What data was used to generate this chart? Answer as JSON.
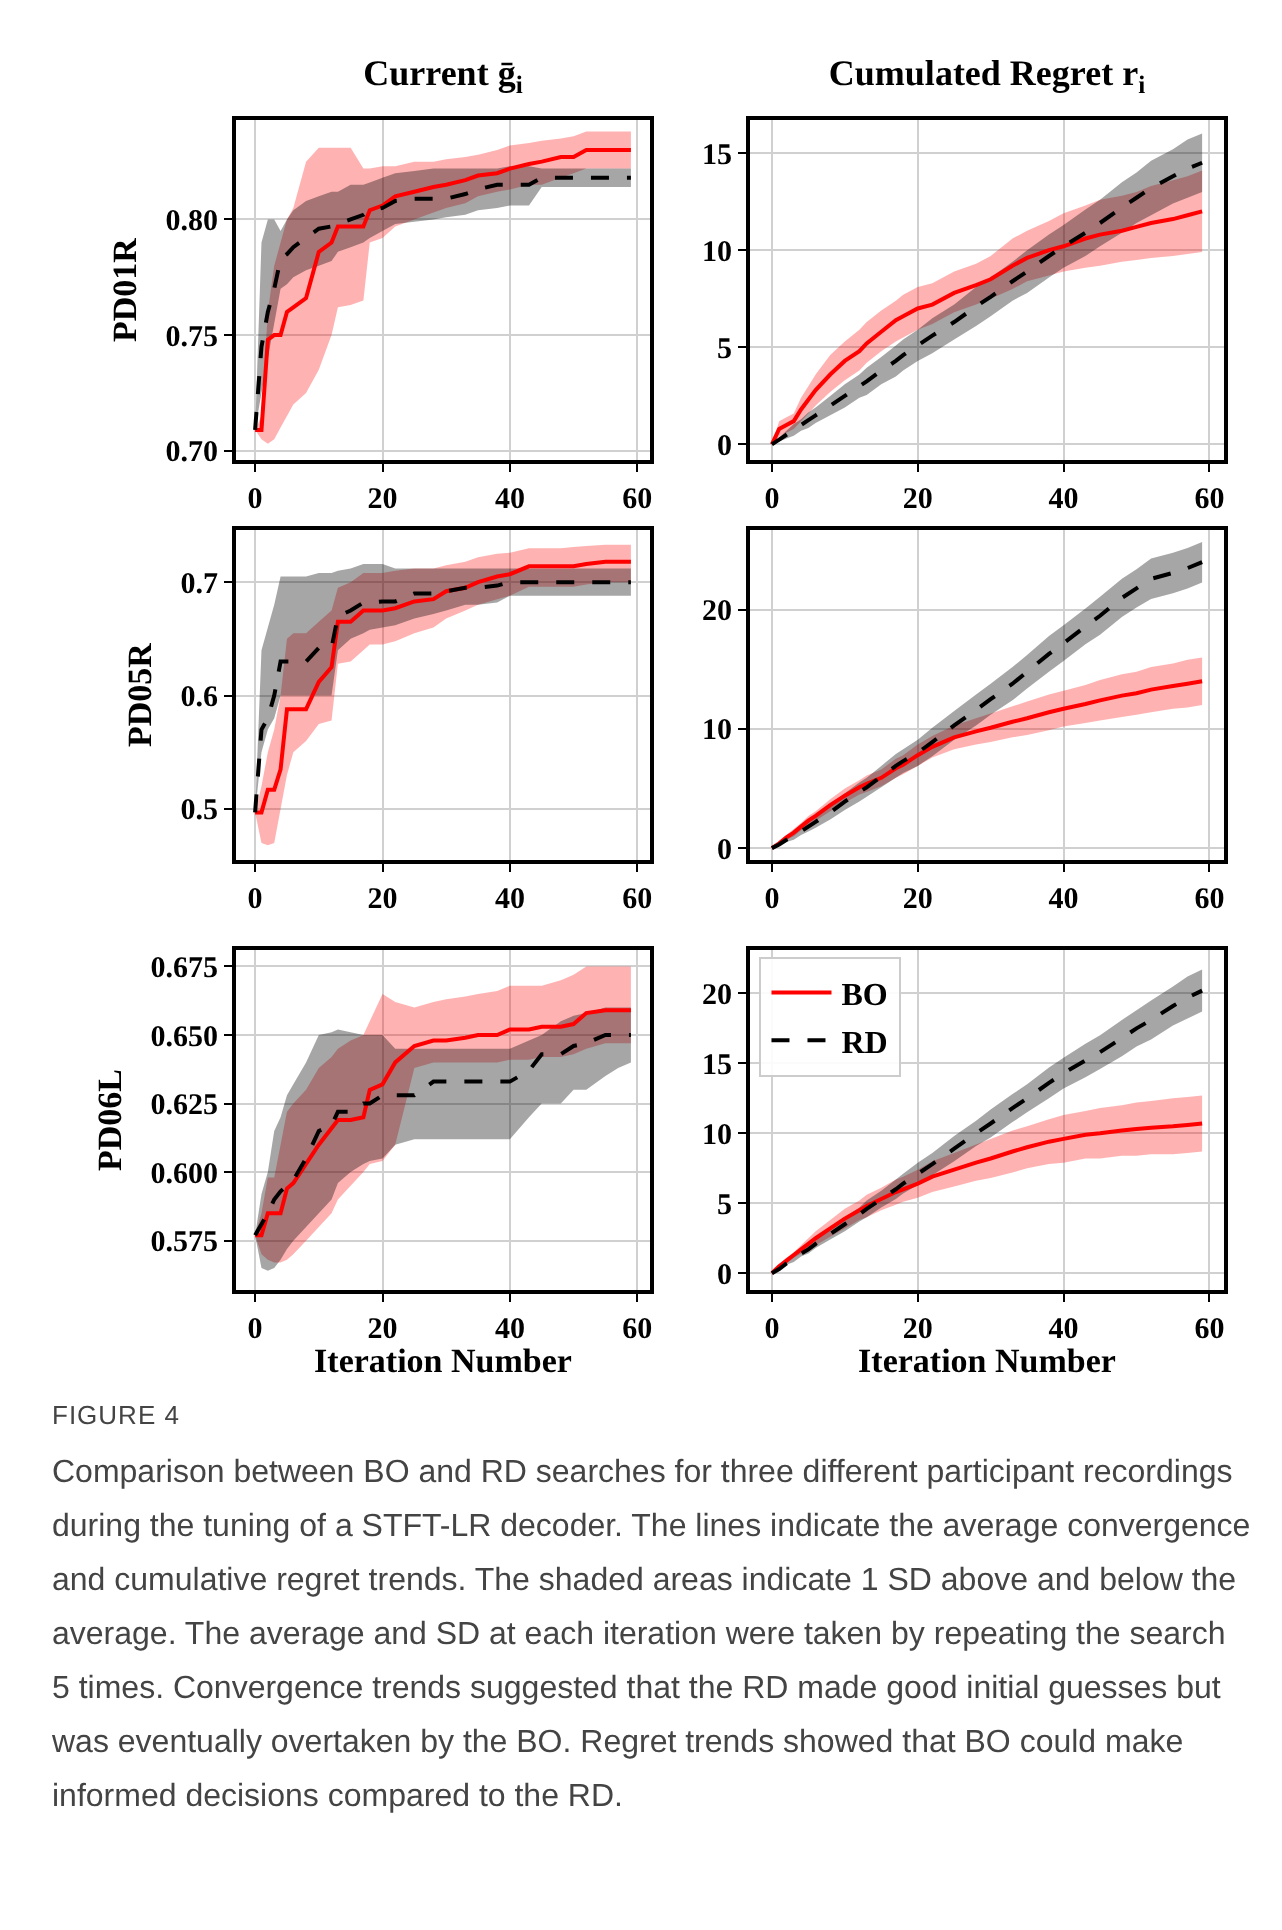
{
  "chart_data": [
    {
      "type": "line",
      "title": "Current ḡ$_{i}$",
      "ylabel": "PD01R",
      "x": [
        0,
        1,
        2,
        3,
        4,
        5,
        6,
        8,
        10,
        12,
        13,
        15,
        17,
        18,
        20,
        22,
        25,
        28,
        30,
        33,
        35,
        38,
        40,
        43,
        45,
        48,
        50,
        52,
        55,
        57,
        59
      ],
      "xlim": [
        -3,
        62
      ],
      "xticks": [
        0,
        20,
        40,
        60
      ],
      "ylim": [
        0.696,
        0.843
      ],
      "yticks": [
        {
          "value": 0.7,
          "label": "0.70"
        },
        0.75,
        {
          "value": 0.8,
          "label": "0.80"
        }
      ],
      "grid": true,
      "legend": false,
      "series": [
        {
          "color": "#ff0000",
          "line_style": "solid",
          "values": [
            0.709,
            0.709,
            0.748,
            0.75,
            0.75,
            0.76,
            0.762,
            0.766,
            0.786,
            0.79,
            0.797,
            0.797,
            0.797,
            0.804,
            0.806,
            0.81,
            0.812,
            0.814,
            0.815,
            0.817,
            0.819,
            0.82,
            0.822,
            0.824,
            0.825,
            0.827,
            0.827,
            0.83,
            0.83,
            0.83,
            0.83
          ],
          "lower": [
            0.709,
            0.705,
            0.703,
            0.705,
            0.71,
            0.715,
            0.72,
            0.725,
            0.735,
            0.75,
            0.762,
            0.763,
            0.765,
            0.79,
            0.792,
            0.797,
            0.8,
            0.803,
            0.805,
            0.807,
            0.81,
            0.812,
            0.813,
            0.815,
            0.815,
            0.818,
            0.82,
            0.822,
            0.822,
            0.822,
            0.822
          ],
          "upper": [
            0.709,
            0.715,
            0.76,
            0.78,
            0.79,
            0.8,
            0.805,
            0.825,
            0.831,
            0.831,
            0.831,
            0.831,
            0.822,
            0.822,
            0.823,
            0.823,
            0.825,
            0.825,
            0.826,
            0.827,
            0.828,
            0.83,
            0.832,
            0.833,
            0.834,
            0.835,
            0.836,
            0.838,
            0.838,
            0.838,
            0.838
          ]
        },
        {
          "color": "#000000",
          "line_style": "dashed",
          "values": [
            0.709,
            0.745,
            0.76,
            0.77,
            0.783,
            0.785,
            0.788,
            0.792,
            0.796,
            0.797,
            0.798,
            0.8,
            0.802,
            0.804,
            0.805,
            0.808,
            0.809,
            0.809,
            0.809,
            0.811,
            0.813,
            0.815,
            0.815,
            0.815,
            0.818,
            0.818,
            0.818,
            0.818,
            0.818,
            0.818,
            0.818
          ],
          "lower": [
            0.709,
            0.725,
            0.74,
            0.755,
            0.77,
            0.772,
            0.775,
            0.778,
            0.78,
            0.782,
            0.786,
            0.788,
            0.79,
            0.792,
            0.795,
            0.798,
            0.799,
            0.8,
            0.801,
            0.802,
            0.804,
            0.805,
            0.806,
            0.806,
            0.814,
            0.814,
            0.814,
            0.814,
            0.814,
            0.814,
            0.814
          ],
          "upper": [
            0.709,
            0.79,
            0.8,
            0.8,
            0.795,
            0.8,
            0.804,
            0.808,
            0.81,
            0.812,
            0.812,
            0.815,
            0.815,
            0.816,
            0.818,
            0.82,
            0.821,
            0.822,
            0.822,
            0.822,
            0.822,
            0.822,
            0.823,
            0.823,
            0.822,
            0.822,
            0.822,
            0.822,
            0.822,
            0.822,
            0.822
          ]
        }
      ]
    },
    {
      "type": "line",
      "title": "Cumulated Regret r$_{i}$",
      "x": [
        0,
        1,
        2,
        3,
        4,
        5,
        6,
        8,
        10,
        12,
        13,
        15,
        17,
        18,
        20,
        22,
        25,
        28,
        30,
        33,
        35,
        38,
        40,
        43,
        45,
        48,
        50,
        52,
        55,
        57,
        59
      ],
      "xlim": [
        -3,
        62
      ],
      "xticks": [
        0,
        20,
        40,
        60
      ],
      "ylim": [
        -0.8,
        16.7
      ],
      "yticks": [
        0,
        5,
        10,
        15
      ],
      "grid": true,
      "legend": false,
      "series": [
        {
          "color": "#ff0000",
          "line_style": "solid",
          "values": [
            0,
            0.8,
            1.0,
            1.2,
            1.8,
            2.3,
            2.8,
            3.6,
            4.3,
            4.8,
            5.2,
            5.8,
            6.4,
            6.6,
            7.0,
            7.2,
            7.8,
            8.2,
            8.5,
            9.2,
            9.6,
            10.0,
            10.2,
            10.6,
            10.8,
            11.0,
            11.2,
            11.4,
            11.6,
            11.8,
            12.0
          ],
          "lower": [
            0,
            0.4,
            0.6,
            0.8,
            1.2,
            1.6,
            2.0,
            2.7,
            3.3,
            3.8,
            4.2,
            4.8,
            5.3,
            5.5,
            5.9,
            6.2,
            6.8,
            7.2,
            7.5,
            8.0,
            8.4,
            8.7,
            8.9,
            9.1,
            9.2,
            9.4,
            9.5,
            9.6,
            9.7,
            9.8,
            9.9
          ],
          "upper": [
            0,
            1.2,
            1.4,
            1.6,
            2.4,
            3.0,
            3.6,
            4.6,
            5.3,
            5.9,
            6.3,
            6.9,
            7.4,
            7.7,
            8.1,
            8.3,
            8.9,
            9.3,
            9.7,
            10.6,
            11.0,
            11.5,
            11.9,
            12.3,
            12.6,
            12.8,
            13.0,
            13.3,
            13.6,
            13.8,
            14.1
          ]
        },
        {
          "color": "#000000",
          "line_style": "dashed",
          "values": [
            0,
            0.25,
            0.5,
            0.75,
            1.0,
            1.25,
            1.5,
            2.0,
            2.5,
            3.0,
            3.25,
            3.8,
            4.3,
            4.6,
            5.1,
            5.6,
            6.3,
            7.1,
            7.6,
            8.4,
            8.9,
            9.7,
            10.2,
            10.9,
            11.4,
            12.2,
            12.7,
            13.2,
            13.8,
            14.2,
            14.5
          ],
          "lower": [
            0,
            0.15,
            0.3,
            0.45,
            0.7,
            0.85,
            1.1,
            1.5,
            1.9,
            2.4,
            2.55,
            3.1,
            3.5,
            3.8,
            4.3,
            4.7,
            5.4,
            6.1,
            6.6,
            7.4,
            7.8,
            8.6,
            9.1,
            9.7,
            10.2,
            10.9,
            11.4,
            11.8,
            12.4,
            12.7,
            13.0
          ],
          "upper": [
            0,
            0.35,
            0.7,
            1.05,
            1.3,
            1.65,
            1.9,
            2.5,
            3.1,
            3.6,
            3.95,
            4.5,
            5.1,
            5.4,
            5.9,
            6.5,
            7.2,
            8.1,
            8.6,
            9.4,
            10.0,
            10.8,
            11.3,
            12.1,
            12.6,
            13.5,
            14.0,
            14.6,
            15.2,
            15.7,
            16.0
          ]
        }
      ]
    },
    {
      "type": "line",
      "ylabel": "PD05R",
      "x": [
        0,
        1,
        2,
        3,
        4,
        5,
        6,
        8,
        10,
        12,
        13,
        15,
        17,
        18,
        20,
        22,
        25,
        28,
        30,
        33,
        35,
        38,
        40,
        43,
        45,
        48,
        50,
        52,
        55,
        57,
        59
      ],
      "xlim": [
        -3,
        62
      ],
      "xticks": [
        0,
        20,
        40,
        60
      ],
      "ylim": [
        0.455,
        0.746
      ],
      "yticks": [
        0.5,
        0.6,
        0.7
      ],
      "grid": true,
      "legend": false,
      "series": [
        {
          "color": "#ff0000",
          "line_style": "solid",
          "values": [
            0.497,
            0.497,
            0.517,
            0.517,
            0.535,
            0.588,
            0.588,
            0.588,
            0.612,
            0.625,
            0.665,
            0.665,
            0.675,
            0.675,
            0.675,
            0.677,
            0.683,
            0.685,
            0.692,
            0.695,
            0.7,
            0.705,
            0.707,
            0.714,
            0.714,
            0.714,
            0.714,
            0.716,
            0.718,
            0.718,
            0.718
          ],
          "lower": [
            0.497,
            0.47,
            0.468,
            0.47,
            0.5,
            0.53,
            0.55,
            0.56,
            0.575,
            0.578,
            0.628,
            0.63,
            0.64,
            0.645,
            0.645,
            0.648,
            0.655,
            0.66,
            0.668,
            0.675,
            0.68,
            0.685,
            0.688,
            0.696,
            0.696,
            0.696,
            0.696,
            0.698,
            0.7,
            0.7,
            0.7
          ],
          "upper": [
            0.497,
            0.52,
            0.55,
            0.57,
            0.6,
            0.65,
            0.655,
            0.655,
            0.665,
            0.675,
            0.695,
            0.7,
            0.708,
            0.708,
            0.708,
            0.71,
            0.712,
            0.712,
            0.715,
            0.718,
            0.722,
            0.725,
            0.726,
            0.73,
            0.73,
            0.73,
            0.731,
            0.732,
            0.733,
            0.733,
            0.733
          ]
        },
        {
          "color": "#000000",
          "line_style": "dashed",
          "values": [
            0.497,
            0.57,
            0.58,
            0.6,
            0.63,
            0.63,
            0.63,
            0.63,
            0.642,
            0.642,
            0.67,
            0.675,
            0.682,
            0.682,
            0.683,
            0.683,
            0.69,
            0.69,
            0.692,
            0.695,
            0.695,
            0.697,
            0.7,
            0.7,
            0.7,
            0.7,
            0.7,
            0.7,
            0.7,
            0.7,
            0.7
          ],
          "lower": [
            0.497,
            0.55,
            0.57,
            0.58,
            0.6,
            0.6,
            0.6,
            0.6,
            0.6,
            0.6,
            0.64,
            0.65,
            0.655,
            0.658,
            0.66,
            0.662,
            0.668,
            0.672,
            0.675,
            0.68,
            0.68,
            0.682,
            0.688,
            0.688,
            0.688,
            0.688,
            0.688,
            0.688,
            0.688,
            0.688,
            0.688
          ],
          "upper": [
            0.497,
            0.64,
            0.66,
            0.68,
            0.705,
            0.705,
            0.705,
            0.705,
            0.708,
            0.708,
            0.71,
            0.712,
            0.716,
            0.716,
            0.716,
            0.712,
            0.712,
            0.712,
            0.712,
            0.712,
            0.712,
            0.712,
            0.712,
            0.712,
            0.712,
            0.712,
            0.712,
            0.712,
            0.712,
            0.712,
            0.712
          ]
        }
      ]
    },
    {
      "type": "line",
      "x": [
        0,
        1,
        2,
        3,
        4,
        5,
        6,
        8,
        10,
        12,
        13,
        15,
        17,
        18,
        20,
        22,
        25,
        28,
        30,
        33,
        35,
        38,
        40,
        43,
        45,
        48,
        50,
        52,
        55,
        57,
        59
      ],
      "xlim": [
        -3,
        62
      ],
      "xticks": [
        0,
        20,
        40,
        60
      ],
      "ylim": [
        -1,
        26.7
      ],
      "yticks": [
        0,
        10,
        20
      ],
      "grid": true,
      "legend": false,
      "series": [
        {
          "color": "#ff0000",
          "line_style": "solid",
          "values": [
            0,
            0.4,
            0.9,
            1.3,
            1.8,
            2.3,
            2.7,
            3.6,
            4.4,
            5.1,
            5.4,
            5.9,
            6.7,
            7.0,
            7.8,
            8.5,
            9.3,
            9.8,
            10.1,
            10.6,
            10.9,
            11.4,
            11.7,
            12.1,
            12.4,
            12.8,
            13.0,
            13.3,
            13.6,
            13.8,
            14.0
          ],
          "lower": [
            0,
            0.3,
            0.7,
            1.0,
            1.5,
            1.9,
            2.3,
            3.1,
            3.8,
            4.5,
            4.7,
            5.2,
            5.9,
            6.2,
            6.9,
            7.6,
            8.3,
            8.7,
            8.9,
            9.3,
            9.5,
            9.9,
            10.2,
            10.5,
            10.7,
            11.0,
            11.2,
            11.4,
            11.7,
            11.8,
            12.0
          ],
          "upper": [
            0,
            0.5,
            1.1,
            1.6,
            2.1,
            2.7,
            3.1,
            4.1,
            5.0,
            5.7,
            6.1,
            6.6,
            7.5,
            7.8,
            8.7,
            9.4,
            10.3,
            10.9,
            11.3,
            11.9,
            12.3,
            12.9,
            13.2,
            13.7,
            14.1,
            14.6,
            14.8,
            15.2,
            15.5,
            15.8,
            16.0
          ]
        },
        {
          "color": "#000000",
          "line_style": "dashed",
          "values": [
            0,
            0.3,
            0.7,
            1.0,
            1.4,
            1.8,
            2.2,
            3.0,
            3.9,
            4.7,
            5.1,
            6.0,
            6.9,
            7.3,
            8.0,
            8.9,
            10.3,
            11.6,
            12.5,
            13.8,
            14.8,
            16.3,
            17.2,
            18.6,
            19.5,
            21.0,
            21.8,
            22.6,
            23.1,
            23.5,
            24.0
          ],
          "lower": [
            0,
            0.2,
            0.5,
            0.7,
            1.1,
            1.4,
            1.7,
            2.4,
            3.2,
            3.9,
            4.3,
            5.1,
            5.9,
            6.3,
            6.9,
            7.7,
            9.1,
            10.3,
            11.2,
            12.4,
            13.4,
            14.8,
            15.7,
            17.1,
            17.9,
            19.4,
            20.2,
            20.9,
            21.4,
            21.8,
            22.3
          ],
          "upper": [
            0,
            0.4,
            0.9,
            1.3,
            1.7,
            2.2,
            2.7,
            3.6,
            4.6,
            5.5,
            5.9,
            6.9,
            7.9,
            8.3,
            9.1,
            10.1,
            11.5,
            12.9,
            13.8,
            15.2,
            16.2,
            17.8,
            18.7,
            20.1,
            21.1,
            22.6,
            23.4,
            24.3,
            24.8,
            25.2,
            25.7
          ]
        }
      ]
    },
    {
      "type": "line",
      "ylabel": "PD06L",
      "xlabel": "Iteration Number",
      "x": [
        0,
        1,
        2,
        3,
        4,
        5,
        6,
        8,
        10,
        12,
        13,
        15,
        17,
        18,
        20,
        22,
        25,
        28,
        30,
        33,
        35,
        38,
        40,
        43,
        45,
        48,
        50,
        52,
        55,
        57,
        59
      ],
      "xlim": [
        -3,
        62
      ],
      "xticks": [
        0,
        20,
        40,
        60
      ],
      "ylim": [
        0.557,
        0.681
      ],
      "yticks": [
        0.575,
        {
          "value": 0.6,
          "label": "0.600"
        },
        0.625,
        {
          "value": 0.65,
          "label": "0.650"
        },
        0.675
      ],
      "grid": true,
      "legend": false,
      "series": [
        {
          "color": "#ff0000",
          "line_style": "solid",
          "values": [
            0.577,
            0.577,
            0.585,
            0.585,
            0.585,
            0.594,
            0.596,
            0.603,
            0.61,
            0.616,
            0.619,
            0.619,
            0.62,
            0.63,
            0.632,
            0.64,
            0.646,
            0.648,
            0.648,
            0.649,
            0.65,
            0.65,
            0.652,
            0.652,
            0.653,
            0.653,
            0.654,
            0.658,
            0.659,
            0.659,
            0.659
          ],
          "lower": [
            0.577,
            0.57,
            0.568,
            0.567,
            0.567,
            0.568,
            0.57,
            0.575,
            0.58,
            0.585,
            0.59,
            0.595,
            0.6,
            0.603,
            0.604,
            0.61,
            0.638,
            0.64,
            0.64,
            0.64,
            0.64,
            0.64,
            0.641,
            0.641,
            0.642,
            0.642,
            0.643,
            0.645,
            0.647,
            0.647,
            0.647
          ],
          "upper": [
            0.577,
            0.585,
            0.598,
            0.598,
            0.61,
            0.622,
            0.625,
            0.63,
            0.638,
            0.642,
            0.645,
            0.648,
            0.65,
            0.655,
            0.665,
            0.662,
            0.66,
            0.662,
            0.663,
            0.664,
            0.665,
            0.666,
            0.668,
            0.668,
            0.668,
            0.67,
            0.672,
            0.675,
            0.675,
            0.675,
            0.675
          ]
        },
        {
          "color": "#000000",
          "line_style": "dashed",
          "values": [
            0.577,
            0.581,
            0.585,
            0.59,
            0.593,
            0.595,
            0.597,
            0.605,
            0.615,
            0.617,
            0.622,
            0.622,
            0.625,
            0.625,
            0.628,
            0.628,
            0.628,
            0.633,
            0.633,
            0.633,
            0.633,
            0.633,
            0.633,
            0.637,
            0.643,
            0.643,
            0.646,
            0.647,
            0.65,
            0.65,
            0.65
          ],
          "lower": [
            0.577,
            0.565,
            0.564,
            0.565,
            0.568,
            0.572,
            0.575,
            0.58,
            0.585,
            0.59,
            0.596,
            0.6,
            0.603,
            0.604,
            0.605,
            0.61,
            0.612,
            0.612,
            0.612,
            0.612,
            0.612,
            0.612,
            0.612,
            0.62,
            0.625,
            0.625,
            0.63,
            0.63,
            0.635,
            0.638,
            0.64
          ],
          "upper": [
            0.577,
            0.592,
            0.6,
            0.615,
            0.62,
            0.628,
            0.632,
            0.64,
            0.65,
            0.651,
            0.652,
            0.651,
            0.65,
            0.65,
            0.65,
            0.645,
            0.645,
            0.645,
            0.645,
            0.645,
            0.645,
            0.645,
            0.645,
            0.648,
            0.65,
            0.655,
            0.657,
            0.658,
            0.66,
            0.66,
            0.66
          ]
        }
      ]
    },
    {
      "type": "line",
      "xlabel": "Iteration Number",
      "x": [
        0,
        1,
        2,
        3,
        4,
        5,
        6,
        8,
        10,
        12,
        13,
        15,
        17,
        18,
        20,
        22,
        25,
        28,
        30,
        33,
        35,
        38,
        40,
        43,
        45,
        48,
        50,
        52,
        55,
        57,
        59
      ],
      "xlim": [
        -3,
        62
      ],
      "xticks": [
        0,
        20,
        40,
        60
      ],
      "ylim": [
        -1.2,
        23.1
      ],
      "yticks": [
        0,
        5,
        10,
        15,
        20
      ],
      "grid": true,
      "legend": "top left",
      "annotations": [
        "FIGURE 4",
        "Comparison between BO and RD searches for three different participant recordings during the tuning of a STFT-LR decoder. The lines indicate the average convergence and cumulative regret trends. The shaded areas indicate 1 SD above and below the average. The average and SD at each iteration were taken by repeating the search 5 times. Convergence trends suggested that the RD made good initial guesses but was eventually overtaken by the BO. Regret trends showed that BO could make informed decisions compared to the RD."
      ],
      "series": [
        {
          "name": "BO",
          "color": "#ff0000",
          "line_style": "solid",
          "values": [
            0,
            0.5,
            0.9,
            1.3,
            1.7,
            2.1,
            2.5,
            3.2,
            3.9,
            4.5,
            4.8,
            5.3,
            5.8,
            6.0,
            6.4,
            6.9,
            7.4,
            7.9,
            8.2,
            8.7,
            9.0,
            9.4,
            9.6,
            9.9,
            10.0,
            10.2,
            10.3,
            10.4,
            10.5,
            10.6,
            10.7
          ],
          "lower": [
            0,
            0.4,
            0.7,
            1.1,
            1.4,
            1.7,
            2.0,
            2.6,
            3.2,
            3.8,
            4.0,
            4.5,
            4.9,
            5.1,
            5.4,
            5.8,
            6.2,
            6.6,
            6.8,
            7.2,
            7.5,
            7.8,
            7.9,
            8.2,
            8.2,
            8.4,
            8.4,
            8.5,
            8.5,
            8.6,
            8.7
          ],
          "upper": [
            0,
            0.6,
            1.1,
            1.5,
            2.0,
            2.5,
            3.0,
            3.8,
            4.6,
            5.2,
            5.6,
            6.1,
            6.7,
            6.9,
            7.4,
            8.0,
            8.6,
            9.2,
            9.6,
            10.2,
            10.5,
            11.0,
            11.3,
            11.6,
            11.8,
            12.0,
            12.2,
            12.3,
            12.5,
            12.6,
            12.7
          ]
        },
        {
          "name": "RD",
          "color": "#000000",
          "line_style": "dashed",
          "values": [
            0,
            0.3,
            0.7,
            1.0,
            1.4,
            1.7,
            2.1,
            2.8,
            3.5,
            4.2,
            4.6,
            5.3,
            6.0,
            6.4,
            7.1,
            7.8,
            8.9,
            10.0,
            10.7,
            11.8,
            12.5,
            13.6,
            14.3,
            15.2,
            15.8,
            16.8,
            17.5,
            18.1,
            19.1,
            19.7,
            20.2
          ],
          "lower": [
            0,
            0.2,
            0.6,
            0.8,
            1.2,
            1.4,
            1.8,
            2.4,
            3.0,
            3.7,
            4.0,
            4.7,
            5.3,
            5.7,
            6.3,
            7.0,
            8.0,
            9.1,
            9.7,
            10.8,
            11.5,
            12.5,
            13.2,
            14.0,
            14.6,
            15.5,
            16.2,
            16.7,
            17.7,
            18.2,
            18.7
          ],
          "upper": [
            0,
            0.4,
            0.8,
            1.2,
            1.6,
            2.0,
            2.4,
            3.2,
            4.0,
            4.7,
            5.2,
            5.9,
            6.7,
            7.1,
            7.9,
            8.6,
            9.8,
            10.9,
            11.7,
            12.8,
            13.5,
            14.7,
            15.4,
            16.4,
            17.0,
            18.1,
            18.8,
            19.5,
            20.5,
            21.2,
            21.7
          ]
        }
      ]
    }
  ]
}
